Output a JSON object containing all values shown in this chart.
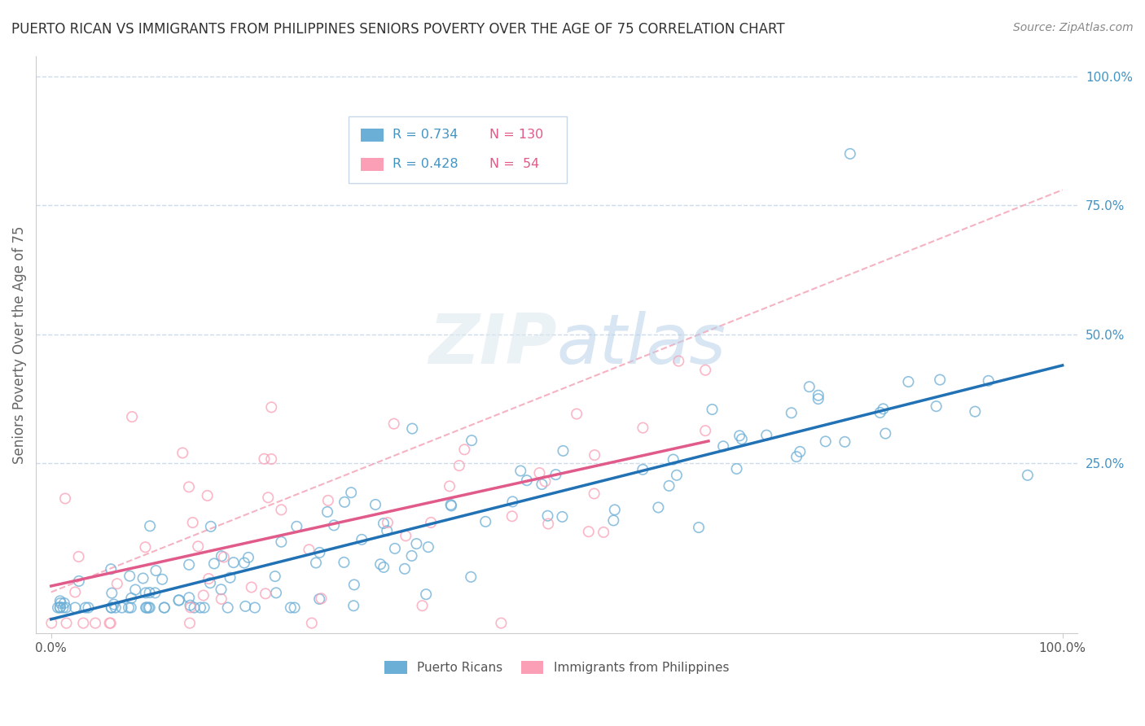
{
  "title": "PUERTO RICAN VS IMMIGRANTS FROM PHILIPPINES SENIORS POVERTY OVER THE AGE OF 75 CORRELATION CHART",
  "source": "Source: ZipAtlas.com",
  "ylabel": "Seniors Poverty Over the Age of 75",
  "watermark": "ZIPatlas",
  "blue_R": 0.734,
  "blue_N": 130,
  "pink_R": 0.428,
  "pink_N": 54,
  "blue_color": "#6baed6",
  "pink_color": "#fa9fb5",
  "blue_line_color": "#2171b5",
  "pink_line_color": "#e05a8a",
  "title_color": "#333333",
  "legend_R_color": "#4393c3",
  "legend_N_color": "#e05a8a",
  "background_color": "#ffffff",
  "grid_color": "#c8d8e8",
  "right_label_color": "#4393c3",
  "dash_line_color": "#f4a5b8",
  "xtick_labels": [
    "0.0%",
    "100.0%"
  ],
  "ytick_labels_right": [
    "100.0%",
    "75.0%",
    "50.0%",
    "25.0%"
  ],
  "ytick_vals_right": [
    1.0,
    0.75,
    0.5,
    0.25
  ]
}
